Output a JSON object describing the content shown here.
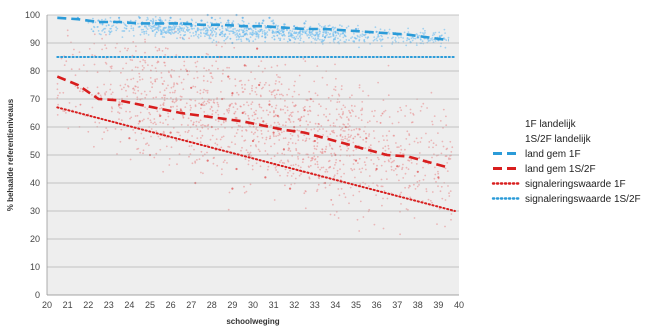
{
  "chart_data": {
    "type": "scatter",
    "xlabel": "schoolweging",
    "ylabel": "% behaalde referentieniveaus",
    "xlim": [
      20,
      40
    ],
    "ylim": [
      0,
      100
    ],
    "x_ticks": [
      20,
      21,
      22,
      23,
      24,
      25,
      26,
      27,
      28,
      29,
      30,
      31,
      32,
      33,
      34,
      35,
      36,
      37,
      38,
      39,
      40
    ],
    "y_ticks": [
      0,
      10,
      20,
      30,
      40,
      50,
      60,
      70,
      80,
      90,
      100
    ],
    "grid": true,
    "legend_position": "right",
    "series": [
      {
        "name": "1F landelijk",
        "kind": "scatter",
        "color": "#5aaee8",
        "points": [
          [
            28.0,
            99
          ],
          [
            29.5,
            99
          ],
          [
            30.5,
            98
          ],
          [
            29.0,
            97
          ],
          [
            27.5,
            98
          ],
          [
            31.0,
            97
          ],
          [
            28.5,
            96
          ],
          [
            30.0,
            96
          ],
          [
            26.5,
            97
          ],
          [
            32.0,
            96
          ],
          [
            29.8,
            95
          ],
          [
            27.0,
            96
          ],
          [
            31.5,
            95
          ],
          [
            28.8,
            98
          ],
          [
            30.8,
            99
          ],
          [
            25.5,
            98
          ],
          [
            33.0,
            95
          ],
          [
            29.2,
            100
          ],
          [
            26.0,
            99
          ],
          [
            31.2,
            94
          ],
          [
            28.2,
            95
          ],
          [
            30.3,
            97
          ],
          [
            34.0,
            94
          ],
          [
            27.8,
            100
          ],
          [
            32.5,
            97
          ],
          [
            29.6,
            93
          ],
          [
            24.5,
            99
          ],
          [
            35.0,
            95
          ],
          [
            30.6,
            92
          ],
          [
            28.4,
            93
          ],
          [
            23.5,
            99
          ],
          [
            36.0,
            94
          ],
          [
            22.5,
            98
          ],
          [
            37.0,
            93
          ],
          [
            38.0,
            92
          ],
          [
            39.0,
            91
          ],
          [
            21.5,
            99
          ],
          [
            33.5,
            92
          ],
          [
            31.8,
            91
          ],
          [
            29.0,
            90
          ]
        ]
      },
      {
        "name": "1S/2F landelijk",
        "kind": "scatter",
        "color": "#e05a5a",
        "points": [
          [
            28.5,
            70
          ],
          [
            29.5,
            65
          ],
          [
            30.5,
            62
          ],
          [
            27.5,
            68
          ],
          [
            31.0,
            58
          ],
          [
            29.0,
            72
          ],
          [
            28.0,
            60
          ],
          [
            30.0,
            55
          ],
          [
            26.5,
            66
          ],
          [
            32.0,
            60
          ],
          [
            29.8,
            50
          ],
          [
            27.0,
            74
          ],
          [
            31.5,
            52
          ],
          [
            28.8,
            78
          ],
          [
            30.8,
            68
          ],
          [
            25.5,
            64
          ],
          [
            33.0,
            55
          ],
          [
            29.2,
            45
          ],
          [
            26.0,
            58
          ],
          [
            31.2,
            64
          ],
          [
            28.2,
            52
          ],
          [
            30.3,
            75
          ],
          [
            34.0,
            50
          ],
          [
            27.8,
            48
          ],
          [
            32.5,
            66
          ],
          [
            29.6,
            82
          ],
          [
            24.5,
            62
          ],
          [
            35.0,
            48
          ],
          [
            30.6,
            42
          ],
          [
            28.4,
            85
          ],
          [
            23.5,
            68
          ],
          [
            36.0,
            45
          ],
          [
            22.5,
            72
          ],
          [
            37.0,
            46
          ],
          [
            38.0,
            44
          ],
          [
            39.0,
            42
          ],
          [
            21.5,
            74
          ],
          [
            33.5,
            40
          ],
          [
            31.8,
            38
          ],
          [
            29.0,
            38
          ],
          [
            27.2,
            40
          ],
          [
            30.2,
            88
          ],
          [
            25.0,
            50
          ],
          [
            32.8,
            70
          ],
          [
            34.5,
            60
          ],
          [
            26.8,
            80
          ],
          [
            35.5,
            56
          ],
          [
            24.0,
            56
          ]
        ]
      },
      {
        "name": "land gem 1F",
        "kind": "line",
        "style": "dashed",
        "color": "#2b9bd8",
        "x": [
          20.5,
          21.5,
          22.5,
          23.5,
          24.5,
          25.5,
          26.5,
          27.5,
          28.5,
          29.5,
          30.5,
          31.5,
          32.5,
          33.5,
          34.5,
          35.5,
          36.5,
          37.5,
          38.5,
          39.5
        ],
        "y": [
          99,
          98.5,
          97.5,
          97.5,
          97,
          97,
          97,
          96.5,
          96.5,
          96,
          96,
          95.5,
          95,
          95,
          94.5,
          94,
          93.5,
          93,
          92,
          91
        ]
      },
      {
        "name": "land gem 1S/2F",
        "kind": "line",
        "style": "dashed",
        "color": "#d81e1e",
        "x": [
          20.5,
          21.5,
          22.5,
          23.5,
          24.5,
          25.5,
          26.5,
          27.5,
          28.5,
          29.5,
          30.5,
          31.5,
          32.5,
          33.5,
          34.5,
          35.5,
          36.5,
          37.5,
          38.5,
          39.5
        ],
        "y": [
          78,
          75,
          70,
          69.5,
          68,
          66.5,
          65,
          64,
          63,
          62,
          60.5,
          59,
          58,
          56,
          54,
          52,
          50,
          49.5,
          47.5,
          45.5
        ]
      },
      {
        "name": "signaleringswaarde 1F",
        "kind": "line",
        "style": "dotted",
        "color": "#d81e1e",
        "x": [
          20.5,
          39.8
        ],
        "y": [
          67,
          30
        ]
      },
      {
        "name": "signaleringswaarde 1S/2F",
        "kind": "line",
        "style": "dotted",
        "color": "#2b9bd8",
        "x": [
          20.5,
          39.8
        ],
        "y": [
          85,
          85
        ]
      }
    ]
  }
}
